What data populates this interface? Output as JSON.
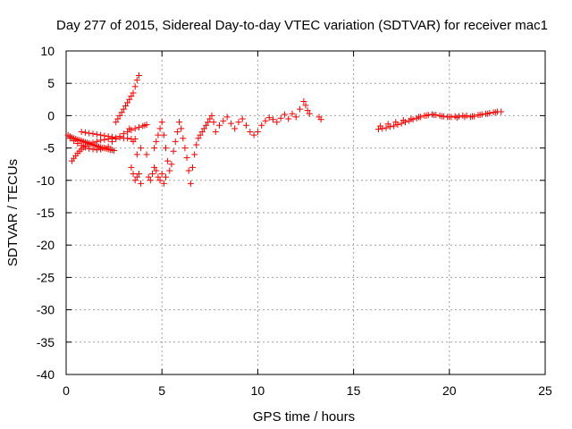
{
  "chart_data": {
    "type": "scatter",
    "title": "Day 277 of 2015, Sidereal Day-to-day VTEC variation (SDTVAR) for receiver mac1",
    "xlabel": "GPS time / hours",
    "ylabel": "SDTVAR / TECUs",
    "xlim": [
      0,
      25
    ],
    "ylim": [
      -40,
      10
    ],
    "xticks": [
      0,
      5,
      10,
      15,
      20,
      25
    ],
    "yticks": [
      10,
      5,
      0,
      -5,
      -10,
      -15,
      -20,
      -25,
      -30,
      -35,
      -40
    ],
    "grid": true,
    "marker": "+",
    "series": [
      {
        "name": "SDTVAR",
        "color": "#ff0000",
        "x": [
          0.1,
          0.2,
          0.3,
          0.4,
          0.5,
          0.6,
          0.7,
          0.8,
          0.9,
          1.0,
          1.1,
          1.2,
          1.3,
          1.4,
          1.5,
          1.6,
          1.7,
          1.8,
          1.9,
          2.0,
          2.1,
          2.2,
          2.3,
          2.4,
          2.5,
          0.3,
          0.4,
          0.5,
          0.6,
          0.7,
          0.8,
          0.9,
          1.0,
          1.2,
          1.4,
          1.6,
          1.8,
          2.0,
          2.2,
          2.4,
          0.2,
          0.4,
          0.6,
          0.8,
          1.0,
          1.2,
          1.4,
          1.6,
          1.8,
          2.0,
          2.2,
          0.8,
          1.0,
          1.2,
          1.4,
          1.6,
          1.8,
          2.0,
          2.2,
          2.4,
          2.6,
          2.8,
          3.0,
          3.2,
          3.4,
          3.6,
          2.4,
          2.6,
          2.8,
          3.0,
          3.2,
          3.4,
          3.6,
          3.8,
          4.0,
          4.2,
          2.6,
          2.7,
          2.8,
          2.9,
          3.0,
          3.1,
          3.2,
          3.3,
          3.4,
          3.5,
          3.6,
          3.7,
          3.8,
          3.4,
          3.5,
          3.6,
          3.7,
          3.8,
          3.9,
          3.3,
          3.5,
          3.7,
          3.9,
          4.1,
          4.2,
          4.3,
          4.4,
          4.5,
          4.6,
          4.7,
          4.8,
          4.9,
          5.0,
          5.1,
          5.2,
          4.6,
          4.7,
          4.8,
          4.9,
          5.0,
          5.1,
          5.2,
          5.3,
          5.4,
          5.5,
          5.6,
          5.7,
          5.8,
          5.9,
          6.0,
          6.1,
          6.2,
          6.3,
          6.4,
          6.5,
          6.6,
          6.7,
          6.8,
          6.9,
          7.0,
          7.1,
          7.2,
          7.3,
          7.4,
          7.5,
          7.6,
          7.7,
          7.8,
          8.0,
          8.2,
          8.4,
          8.6,
          8.8,
          9.0,
          9.2,
          9.4,
          9.6,
          9.8,
          10.0,
          10.2,
          10.4,
          10.6,
          10.8,
          11.0,
          11.2,
          11.4,
          11.6,
          11.8,
          12.0,
          12.2,
          12.4,
          12.5,
          12.6,
          12.7,
          13.2,
          13.3,
          16.3,
          16.5,
          16.7,
          16.9,
          17.1,
          17.3,
          17.5,
          17.7,
          17.9,
          18.1,
          18.3,
          18.5,
          18.7,
          18.9,
          19.1,
          19.3,
          19.5,
          19.7,
          19.9,
          20.1,
          20.3,
          20.5,
          20.7,
          20.9,
          21.1,
          21.3,
          21.5,
          21.7,
          21.9,
          22.1,
          22.3,
          22.5,
          22.7,
          16.4,
          16.8,
          17.2,
          17.6,
          18.0,
          18.4,
          18.8,
          19.2,
          19.6,
          20.0,
          20.4,
          20.8,
          21.2,
          21.6,
          22.0,
          22.4
        ],
        "y": [
          -3.0,
          -3.2,
          -3.4,
          -3.5,
          -3.6,
          -3.7,
          -3.8,
          -3.9,
          -4.0,
          -4.1,
          -4.2,
          -4.3,
          -4.4,
          -4.5,
          -4.6,
          -4.7,
          -4.8,
          -4.9,
          -5.0,
          -5.0,
          -5.1,
          -5.2,
          -5.3,
          -5.3,
          -5.4,
          -7.0,
          -6.6,
          -6.2,
          -5.8,
          -5.5,
          -5.2,
          -4.9,
          -4.7,
          -4.4,
          -4.2,
          -4.0,
          -3.8,
          -3.7,
          -3.6,
          -3.5,
          -3.5,
          -3.9,
          -4.3,
          -4.6,
          -4.9,
          -5.1,
          -5.2,
          -5.3,
          -5.2,
          -5.0,
          -4.8,
          -2.5,
          -2.6,
          -2.7,
          -2.8,
          -2.9,
          -3.0,
          -3.1,
          -3.2,
          -3.3,
          -3.4,
          -3.4,
          -3.5,
          -3.5,
          -3.6,
          -3.6,
          -4.0,
          -3.6,
          -3.2,
          -2.8,
          -2.5,
          -2.2,
          -2.0,
          -1.8,
          -1.6,
          -1.4,
          -1.0,
          -0.5,
          0.0,
          0.5,
          1.0,
          1.5,
          2.0,
          2.5,
          3.0,
          3.5,
          4.5,
          5.5,
          6.2,
          -8.0,
          -9.0,
          -10.0,
          -9.5,
          -9.0,
          -10.5,
          -2.0,
          -4.0,
          -6.0,
          -5.0,
          -1.5,
          -6.0,
          -9.5,
          -10.0,
          -9.0,
          -8.0,
          -8.5,
          -9.5,
          -10.0,
          -9.0,
          -10.5,
          -9.5,
          -5.0,
          -4.0,
          -3.0,
          -2.0,
          -1.0,
          -3.0,
          -5.0,
          -7.0,
          -8.5,
          -7.5,
          -5.5,
          -4.0,
          -2.5,
          -1.0,
          -2.0,
          -3.5,
          -5.0,
          -6.5,
          -8.5,
          -10.5,
          -8.0,
          -6.0,
          -4.5,
          -3.5,
          -3.0,
          -2.5,
          -2.0,
          -1.5,
          -1.0,
          -0.5,
          0.0,
          -1.0,
          -2.5,
          -1.5,
          -0.8,
          -0.2,
          -1.2,
          -2.0,
          -1.0,
          -0.5,
          -1.5,
          -2.5,
          -3.0,
          -2.5,
          -1.5,
          -0.8,
          -0.3,
          -0.6,
          -1.0,
          -0.4,
          0.2,
          -0.5,
          0.3,
          -0.2,
          1.0,
          2.2,
          1.6,
          0.8,
          0.3,
          -0.2,
          -0.6,
          -2.1,
          -2.0,
          -1.9,
          -1.7,
          -1.6,
          -1.4,
          -1.2,
          -1.0,
          -0.8,
          -0.6,
          -0.4,
          -0.2,
          0.0,
          0.1,
          0.2,
          0.1,
          0.0,
          -0.1,
          -0.2,
          -0.2,
          -0.1,
          -0.1,
          0.0,
          0.0,
          -0.2,
          -0.1,
          0.1,
          0.2,
          0.3,
          0.4,
          0.5,
          0.6,
          0.6,
          -1.6,
          -1.3,
          -1.0,
          -0.7,
          -0.5,
          -0.2,
          0.0,
          0.1,
          -0.1,
          -0.2,
          -0.3,
          -0.2,
          -0.1,
          0.1,
          0.3,
          0.5
        ]
      }
    ]
  }
}
